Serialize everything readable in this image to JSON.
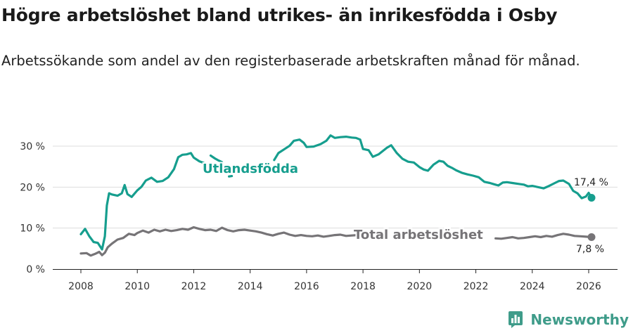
{
  "title": "Högre arbetslöshet bland utrikes- än inrikesfödda i Osby",
  "subtitle": "Arbetssökande som andel av den registerbaserade arbetskraften månad för månad.",
  "brand": "Newsworthy",
  "colors": {
    "foreign": "#169e8e",
    "total": "#767477",
    "grid": "#dddddd",
    "axis": "#222222"
  },
  "chart_data": {
    "type": "line",
    "title": "Högre arbetslöshet bland utrikes- än inrikesfödda i Osby",
    "subtitle": "Arbetssökande som andel av den registerbaserade arbetskraften månad för månad.",
    "xlabel": "",
    "ylabel": "",
    "xlim": [
      2007.0,
      2026.7
    ],
    "ylim": [
      0,
      34
    ],
    "grid": "horizontal",
    "x_ticks": [
      2008,
      2010,
      2012,
      2014,
      2016,
      2018,
      2020,
      2022,
      2024,
      2026
    ],
    "y_ticks": [
      0,
      10,
      20,
      30
    ],
    "y_tick_labels": [
      "0 %",
      "10 %",
      "20 %",
      "30 %"
    ],
    "series": [
      {
        "name": "Utlandsfödda",
        "label": "Utlandsfödda",
        "end_label": "17,4 %",
        "x": [
          2008.0,
          2008.15,
          2008.3,
          2008.45,
          2008.6,
          2008.75,
          2008.85,
          2008.92,
          2009.0,
          2009.1,
          2009.3,
          2009.45,
          2009.55,
          2009.65,
          2009.8,
          2010.0,
          2010.15,
          2010.3,
          2010.5,
          2010.7,
          2010.9,
          2011.1,
          2011.3,
          2011.45,
          2011.6,
          2011.75,
          2011.9,
          2012.0,
          2012.2,
          2012.35,
          null,
          2012.6,
          2012.75,
          2012.85,
          2013.0,
          null,
          2013.25,
          2013.35,
          null,
          2014.85,
          2015.0,
          2015.2,
          2015.4,
          2015.55,
          2015.75,
          2015.9,
          2016.0,
          2016.25,
          2016.5,
          2016.7,
          2016.85,
          2017.0,
          2017.2,
          2017.4,
          2017.6,
          2017.75,
          2017.9,
          2018.0,
          2018.2,
          2018.35,
          2018.55,
          2018.7,
          2018.85,
          2019.0,
          2019.2,
          2019.4,
          2019.6,
          2019.8,
          2020.0,
          2020.15,
          2020.3,
          2020.5,
          2020.7,
          2020.85,
          2021.0,
          2021.15,
          2021.3,
          2021.5,
          2021.7,
          2021.9,
          2022.1,
          2022.3,
          2022.5,
          2022.65,
          2022.8,
          2022.95,
          2023.1,
          2023.3,
          2023.5,
          2023.7,
          2023.85,
          2024.0,
          2024.2,
          2024.4,
          2024.6,
          2024.8,
          2024.95,
          2025.1,
          2025.3,
          2025.45,
          2025.6,
          2025.75,
          2025.9,
          2026.0,
          2026.1
        ],
        "y": [
          8.5,
          9.8,
          8.0,
          6.6,
          6.4,
          4.8,
          8.0,
          15.5,
          18.5,
          18.2,
          17.9,
          18.5,
          20.5,
          18.3,
          17.6,
          19.2,
          20.1,
          21.6,
          22.3,
          21.3,
          21.5,
          22.4,
          24.4,
          27.3,
          27.9,
          28.0,
          28.3,
          27.2,
          26.3,
          25.9,
          null,
          27.7,
          27.0,
          26.6,
          26.1,
          null,
          22.6,
          22.7,
          null,
          26.6,
          28.3,
          29.2,
          30.1,
          31.3,
          31.6,
          30.8,
          29.8,
          29.9,
          30.5,
          31.3,
          32.6,
          32.0,
          32.2,
          32.3,
          32.1,
          32.0,
          31.6,
          29.3,
          29.0,
          27.4,
          28.0,
          28.8,
          29.6,
          30.2,
          28.3,
          26.9,
          26.2,
          26.0,
          24.9,
          24.3,
          24.0,
          25.5,
          26.4,
          26.2,
          25.2,
          24.7,
          24.1,
          23.5,
          23.1,
          22.8,
          22.4,
          21.3,
          21.0,
          20.7,
          20.4,
          21.1,
          21.2,
          21.0,
          20.8,
          20.6,
          20.2,
          20.3,
          20.0,
          19.7,
          20.3,
          21.0,
          21.5,
          21.6,
          20.8,
          19.1,
          18.5,
          17.3,
          17.7,
          18.6,
          17.4
        ]
      },
      {
        "name": "Total arbetslöshet",
        "label": "Total arbetslöshet",
        "end_label": "7,8 %",
        "x": [
          2008.0,
          2008.2,
          2008.35,
          2008.5,
          2008.65,
          2008.75,
          2008.85,
          2008.95,
          2009.1,
          2009.3,
          2009.5,
          2009.7,
          2009.9,
          2010.0,
          2010.2,
          2010.4,
          2010.6,
          2010.8,
          2011.0,
          2011.2,
          2011.4,
          2011.6,
          2011.8,
          2012.0,
          2012.2,
          2012.4,
          2012.6,
          2012.8,
          2013.0,
          2013.2,
          2013.4,
          2013.6,
          2013.8,
          2014.0,
          2014.2,
          2014.4,
          2014.6,
          2014.8,
          2015.0,
          2015.2,
          2015.4,
          2015.6,
          2015.8,
          2016.0,
          2016.2,
          2016.4,
          2016.6,
          2016.8,
          2017.0,
          2017.2,
          2017.4,
          2017.6,
          2017.8,
          null,
          2022.7,
          2022.9,
          2023.1,
          2023.3,
          2023.5,
          2023.7,
          2023.9,
          2024.1,
          2024.3,
          2024.5,
          2024.7,
          2024.9,
          2025.1,
          2025.3,
          2025.5,
          2025.7,
          2025.9,
          2026.1
        ],
        "y": [
          3.8,
          3.9,
          3.3,
          3.7,
          4.2,
          3.4,
          4.0,
          5.3,
          6.2,
          7.2,
          7.6,
          8.6,
          8.3,
          8.8,
          9.4,
          8.9,
          9.6,
          9.2,
          9.6,
          9.3,
          9.5,
          9.8,
          9.6,
          10.2,
          9.8,
          9.5,
          9.6,
          9.3,
          10.1,
          9.5,
          9.2,
          9.5,
          9.6,
          9.4,
          9.2,
          8.9,
          8.5,
          8.2,
          8.6,
          8.9,
          8.4,
          8.1,
          8.3,
          8.1,
          8.0,
          8.2,
          7.9,
          8.1,
          8.3,
          8.4,
          8.1,
          8.2,
          8.3,
          null,
          7.5,
          7.4,
          7.6,
          7.8,
          7.5,
          7.6,
          7.8,
          8.0,
          7.8,
          8.1,
          7.9,
          8.3,
          8.6,
          8.4,
          8.1,
          8.0,
          7.9,
          7.8
        ]
      }
    ]
  }
}
